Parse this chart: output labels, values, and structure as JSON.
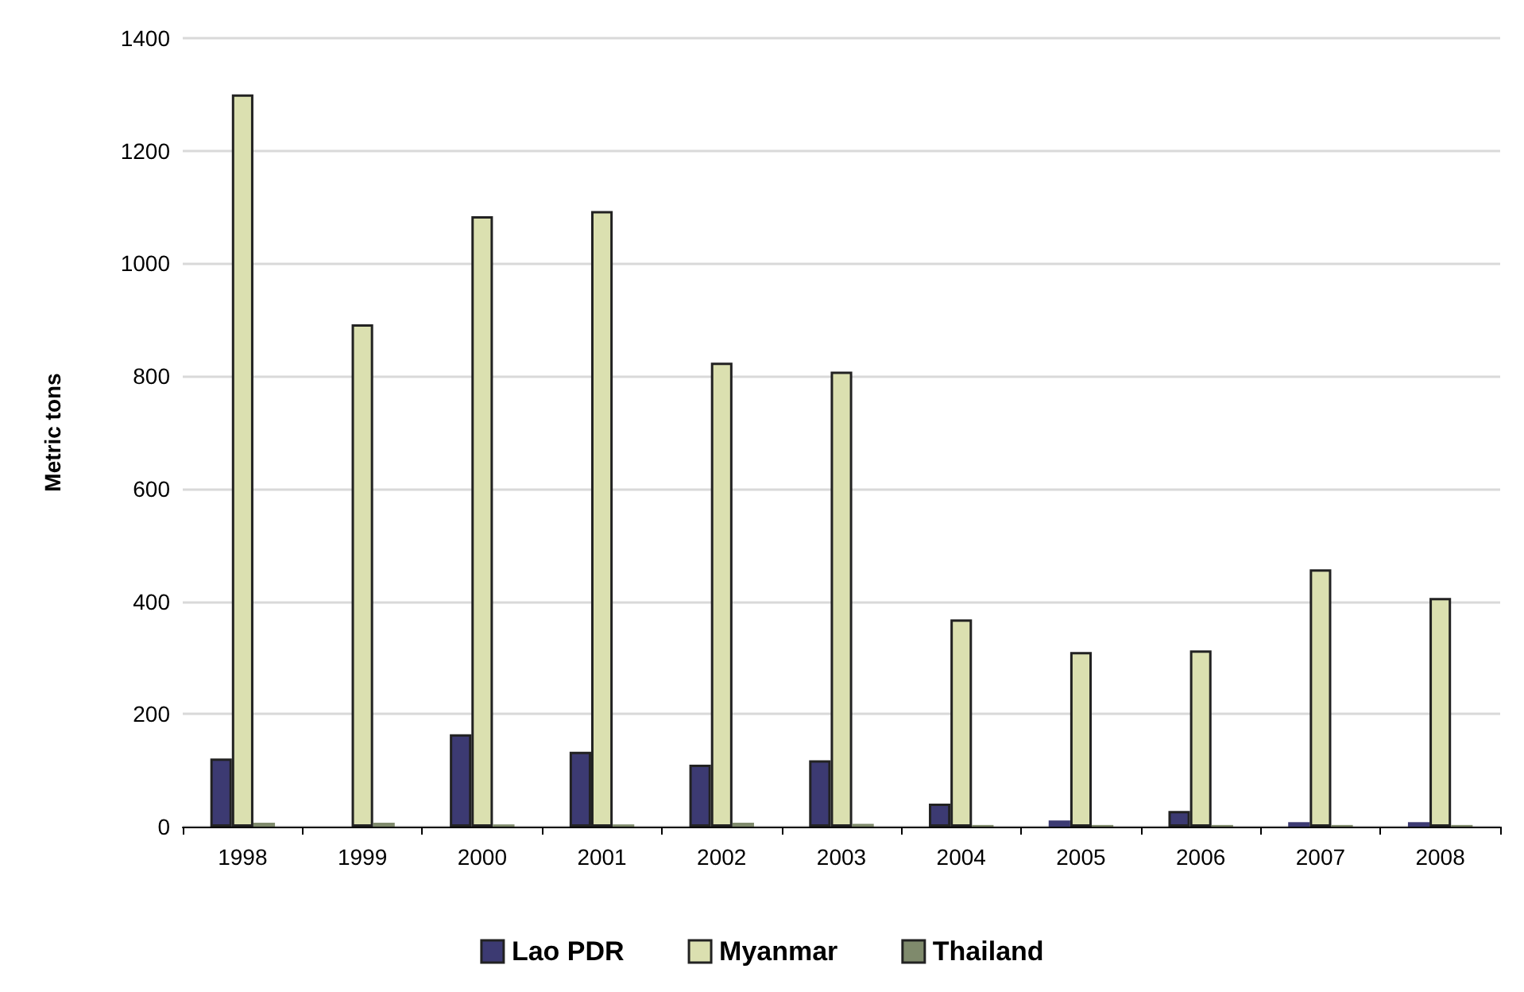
{
  "chart_data": {
    "type": "bar",
    "ylabel": "Metric tons",
    "categories": [
      "1998",
      "1999",
      "2000",
      "2001",
      "2002",
      "2003",
      "2004",
      "2005",
      "2006",
      "2007",
      "2008"
    ],
    "series": [
      {
        "name": "Lao PDR",
        "color": "#3c3a72",
        "values": [
          121,
          null,
          164,
          133,
          110,
          118,
          41,
          11,
          28,
          8,
          8
        ]
      },
      {
        "name": "Myanmar",
        "color": "#dbe0b0",
        "values": [
          1300,
          892,
          1084,
          1093,
          824,
          808,
          368,
          310,
          313,
          457,
          406
        ]
      },
      {
        "name": "Thailand",
        "color": "#7f8a6c",
        "values": [
          7,
          7,
          4,
          4,
          7,
          5,
          3,
          3,
          3,
          3,
          3
        ]
      }
    ],
    "ylim": [
      0,
      1400
    ],
    "yticks": [
      0,
      200,
      400,
      600,
      800,
      1000,
      1200,
      1400
    ],
    "grid": "y",
    "legend": "bottom"
  }
}
